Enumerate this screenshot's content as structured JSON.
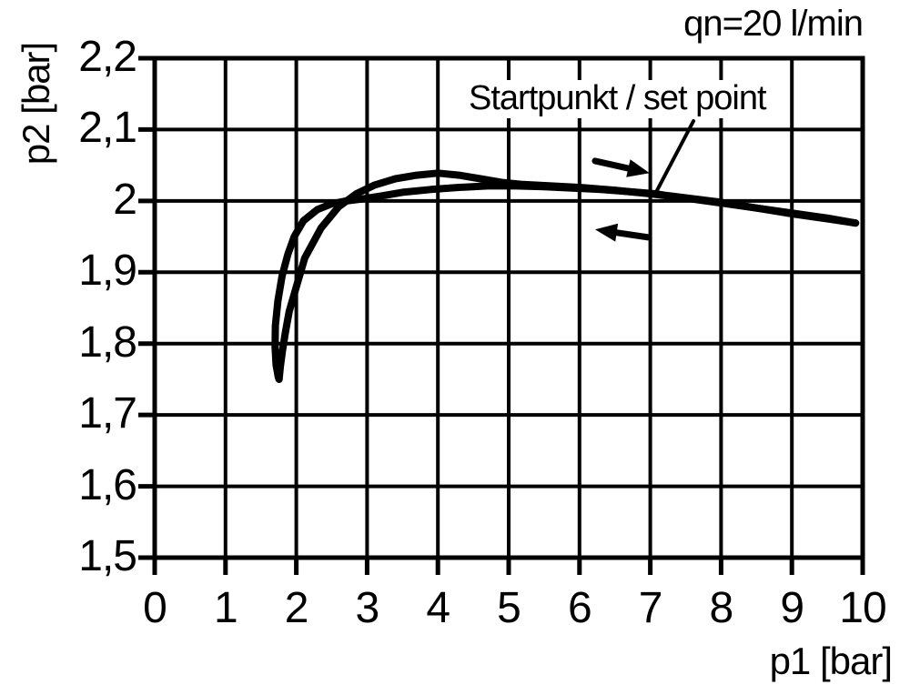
{
  "figure": {
    "background": "#ffffff",
    "ink_color": "#000000"
  },
  "chart_data": {
    "type": "line",
    "title": "qn=20 l/min",
    "xlabel": "p1 [bar]",
    "ylabel": "p2 [bar]",
    "xlim": [
      0,
      10
    ],
    "ylim": [
      1.5,
      2.2
    ],
    "grid": true,
    "legend_position": "none",
    "x_tick_values": [
      0,
      1,
      2,
      3,
      4,
      5,
      6,
      7,
      8,
      9,
      10
    ],
    "x_tick_labels": [
      "0",
      "1",
      "2",
      "3",
      "4",
      "5",
      "6",
      "7",
      "8",
      "9",
      "10"
    ],
    "y_tick_values": [
      2.2,
      2.1,
      2.0,
      1.9,
      1.8,
      1.7,
      1.6,
      1.5
    ],
    "y_tick_labels": [
      "2,2",
      "2,1",
      "2",
      "1,9",
      "1,8",
      "1,7",
      "1,6",
      "1,5"
    ],
    "annotations": {
      "set_point_label": "Startpunkt / set point",
      "leader_line": {
        "from": [
          7.61,
          2.112
        ],
        "to": [
          7.07,
          2.01
        ]
      },
      "arrows": [
        {
          "id": "increasing-p1",
          "direction": "right",
          "from": [
            6.22,
            2.056
          ],
          "to": [
            6.99,
            2.039
          ]
        },
        {
          "id": "decreasing-p1",
          "direction": "left",
          "from": [
            6.97,
            1.949
          ],
          "to": [
            6.22,
            1.96
          ]
        }
      ]
    },
    "series": [
      {
        "name": "increasing_p1",
        "points": [
          [
            1.757,
            1.75
          ],
          [
            1.775,
            1.768
          ],
          [
            1.805,
            1.79
          ],
          [
            1.845,
            1.815
          ],
          [
            1.9,
            1.845
          ],
          [
            1.99,
            1.876
          ],
          [
            2.12,
            1.92
          ],
          [
            2.35,
            1.962
          ],
          [
            2.6,
            1.992
          ],
          [
            2.85,
            2.01
          ],
          [
            3.1,
            2.022
          ],
          [
            3.4,
            2.031
          ],
          [
            3.7,
            2.036
          ],
          [
            4.0,
            2.039
          ],
          [
            4.3,
            2.036
          ],
          [
            4.6,
            2.031
          ],
          [
            4.9,
            2.026
          ],
          [
            5.2,
            2.023
          ],
          [
            5.6,
            2.021
          ],
          [
            6.0,
            2.019
          ],
          [
            6.5,
            2.015
          ],
          [
            7.0,
            2.01
          ],
          [
            7.5,
            2.004
          ],
          [
            8.0,
            1.997
          ],
          [
            8.5,
            1.99
          ],
          [
            9.0,
            1.983
          ],
          [
            9.5,
            1.976
          ],
          [
            9.9,
            1.969
          ]
        ]
      },
      {
        "name": "decreasing_p1",
        "points": [
          [
            9.9,
            1.969
          ],
          [
            9.5,
            1.975
          ],
          [
            9.0,
            1.982
          ],
          [
            8.5,
            1.99
          ],
          [
            8.0,
            1.998
          ],
          [
            7.6,
            2.003
          ],
          [
            7.2,
            2.008
          ],
          [
            7.07,
            2.01
          ],
          [
            6.7,
            2.013
          ],
          [
            6.3,
            2.016
          ],
          [
            5.9,
            2.018
          ],
          [
            5.5,
            2.02
          ],
          [
            5.1,
            2.021
          ],
          [
            4.7,
            2.021
          ],
          [
            4.3,
            2.019
          ],
          [
            3.9,
            2.016
          ],
          [
            3.5,
            2.012
          ],
          [
            3.2,
            2.007
          ],
          [
            2.95,
            2.003
          ],
          [
            2.7,
            2.0
          ],
          [
            2.5,
            1.996
          ],
          [
            2.3,
            1.988
          ],
          [
            2.1,
            1.972
          ],
          [
            1.97,
            1.95
          ],
          [
            1.88,
            1.925
          ],
          [
            1.8,
            1.895
          ],
          [
            1.74,
            1.86
          ],
          [
            1.705,
            1.825
          ],
          [
            1.7,
            1.795
          ],
          [
            1.715,
            1.77
          ],
          [
            1.745,
            1.753
          ],
          [
            1.757,
            1.75
          ]
        ]
      }
    ]
  }
}
